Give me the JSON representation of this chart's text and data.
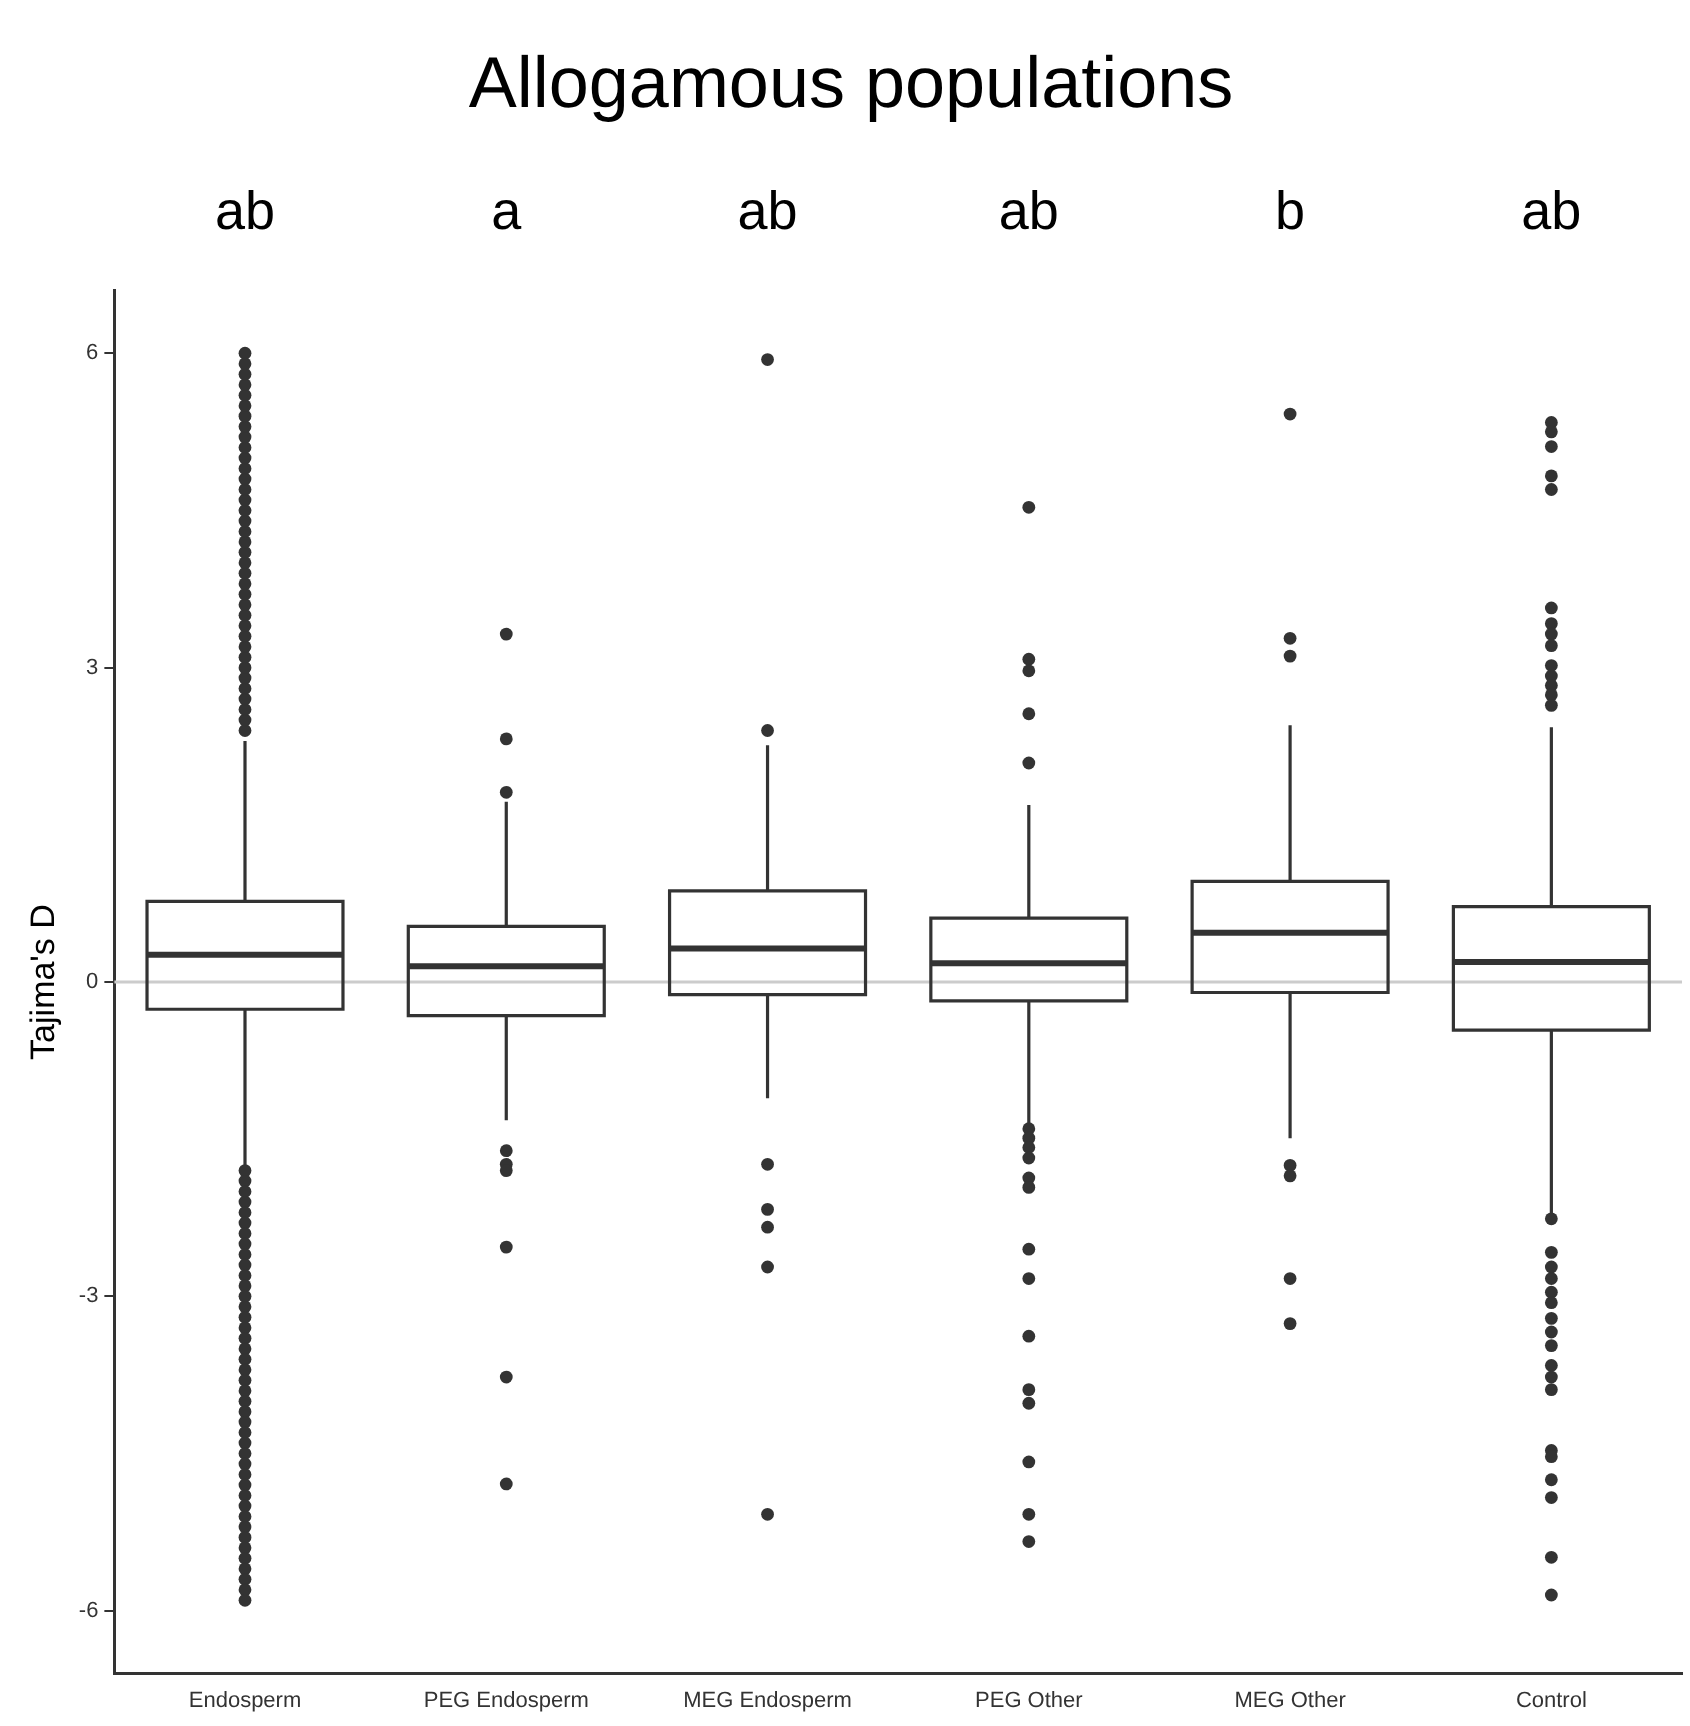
{
  "chart_data": {
    "type": "box",
    "title": "Allogamous populations",
    "ylabel": "Tajima's D",
    "categories": [
      "Endosperm",
      "PEG Endosperm",
      "MEG Endosperm",
      "PEG Other",
      "MEG Other",
      "Control"
    ],
    "boxes": [
      {
        "low": -1.77,
        "q1": -0.26,
        "median": 0.26,
        "q3": 0.77,
        "high": 2.3,
        "outliers": [
          2.4,
          2.5,
          2.6,
          2.7,
          2.8,
          2.9,
          3.0,
          3.1,
          3.2,
          3.3,
          3.4,
          3.5,
          3.6,
          3.7,
          3.8,
          3.9,
          4.0,
          4.1,
          4.2,
          4.3,
          4.4,
          4.5,
          4.6,
          4.7,
          4.8,
          4.9,
          5.0,
          5.1,
          5.2,
          5.3,
          5.4,
          5.5,
          5.6,
          5.7,
          5.8,
          5.9,
          6.0,
          -1.8,
          -1.9,
          -2.0,
          -2.1,
          -2.2,
          -2.3,
          -2.4,
          -2.5,
          -2.6,
          -2.7,
          -2.8,
          -2.9,
          -3.0,
          -3.1,
          -3.2,
          -3.3,
          -3.4,
          -3.5,
          -3.6,
          -3.7,
          -3.8,
          -3.9,
          -4.0,
          -4.1,
          -4.2,
          -4.3,
          -4.4,
          -4.5,
          -4.6,
          -4.7,
          -4.8,
          -4.9,
          -5.0,
          -5.1,
          -5.2,
          -5.3,
          -5.4,
          -5.5,
          -5.6,
          -5.7,
          -5.8,
          -5.9
        ]
      },
      {
        "low": -1.32,
        "q1": -0.32,
        "median": 0.15,
        "q3": 0.53,
        "high": 1.72,
        "outliers": [
          3.32,
          2.32,
          1.81,
          -1.61,
          -1.74,
          -1.8,
          -2.53,
          -3.77,
          -4.79
        ]
      },
      {
        "low": -1.11,
        "q1": -0.12,
        "median": 0.32,
        "q3": 0.87,
        "high": 2.26,
        "outliers": [
          5.94,
          2.4,
          -1.74,
          -2.17,
          -2.34,
          -2.72,
          -5.08
        ]
      },
      {
        "low": -1.36,
        "q1": -0.18,
        "median": 0.18,
        "q3": 0.61,
        "high": 1.69,
        "outliers": [
          4.53,
          3.08,
          2.97,
          2.56,
          2.09,
          -1.4,
          -1.49,
          -1.58,
          -1.68,
          -1.87,
          -1.96,
          -2.55,
          -2.83,
          -3.38,
          -3.89,
          -4.02,
          -4.58,
          -5.08,
          -5.34
        ]
      },
      {
        "low": -1.49,
        "q1": -0.1,
        "median": 0.47,
        "q3": 0.96,
        "high": 2.45,
        "outliers": [
          5.42,
          3.28,
          3.11,
          -1.75,
          -1.85,
          -2.83,
          -3.26
        ]
      },
      {
        "low": -2.21,
        "q1": -0.46,
        "median": 0.19,
        "q3": 0.72,
        "high": 2.43,
        "outliers": [
          5.34,
          5.25,
          5.11,
          4.83,
          4.7,
          3.57,
          3.42,
          3.32,
          3.21,
          3.02,
          2.92,
          2.83,
          2.74,
          2.64,
          -2.26,
          -2.58,
          -2.72,
          -2.83,
          -2.96,
          -3.06,
          -3.21,
          -3.34,
          -3.47,
          -3.66,
          -3.77,
          -3.89,
          -4.47,
          -4.53,
          -4.75,
          -4.92,
          -5.49,
          -5.85
        ]
      }
    ],
    "color": "#333333",
    "ylim": [
      -6.6,
      6.6
    ],
    "yticks": [
      -6,
      -3,
      0,
      3,
      6
    ],
    "grid": false,
    "legend": false,
    "marker": "circle",
    "ref_lines": [
      {
        "axis": "y",
        "value": 0,
        "color": "#cccccc"
      }
    ],
    "annotations": [
      "ab",
      "a",
      "ab",
      "ab",
      "b",
      "ab"
    ]
  }
}
